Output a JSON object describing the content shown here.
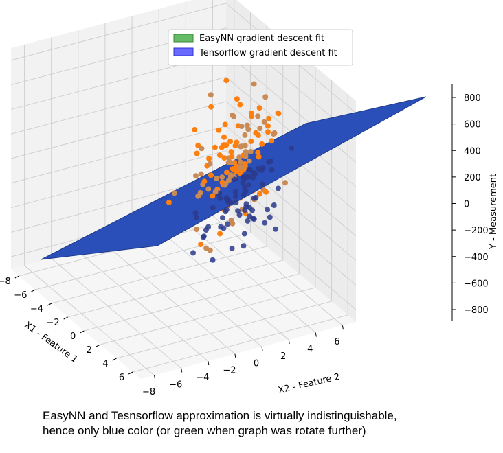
{
  "chart_data": {
    "type": "scatter",
    "projection": "3d",
    "xlabel": "X1 - Feature 1",
    "ylabel": "X2 - Feature 2",
    "zlabel": "Y - Measurement",
    "xticks": [
      "−8",
      "−6",
      "−4",
      "−2",
      "0",
      "2",
      "4",
      "6"
    ],
    "yticks": [
      "−8",
      "−6",
      "−4",
      "−2",
      "0",
      "2",
      "4",
      "6"
    ],
    "zticks": [
      "800",
      "600",
      "400",
      "200",
      "0",
      "−200",
      "−400",
      "−600",
      "−800"
    ],
    "xlim": [
      -8,
      7
    ],
    "ylim": [
      -8,
      7
    ],
    "zlim": [
      -900,
      900
    ],
    "grid": true,
    "legend_position": "top-center",
    "legend": [
      {
        "label": "EasyNN gradient descent fit",
        "color": "#66bb66"
      },
      {
        "label": "Tensorflow gradient descent fit",
        "color": "#6a6aff"
      }
    ],
    "surface_color": "#2a4fb8",
    "point_colors": {
      "front": "#ff7f0e",
      "behind_plane": "#2b3a8c"
    },
    "points_note_count": 220
  },
  "caption": {
    "line1": "EasyNN and Tesnsorflow approximation is virtually indistinguishable,",
    "line2": "hence only blue color (or green when graph was rotate further)"
  }
}
